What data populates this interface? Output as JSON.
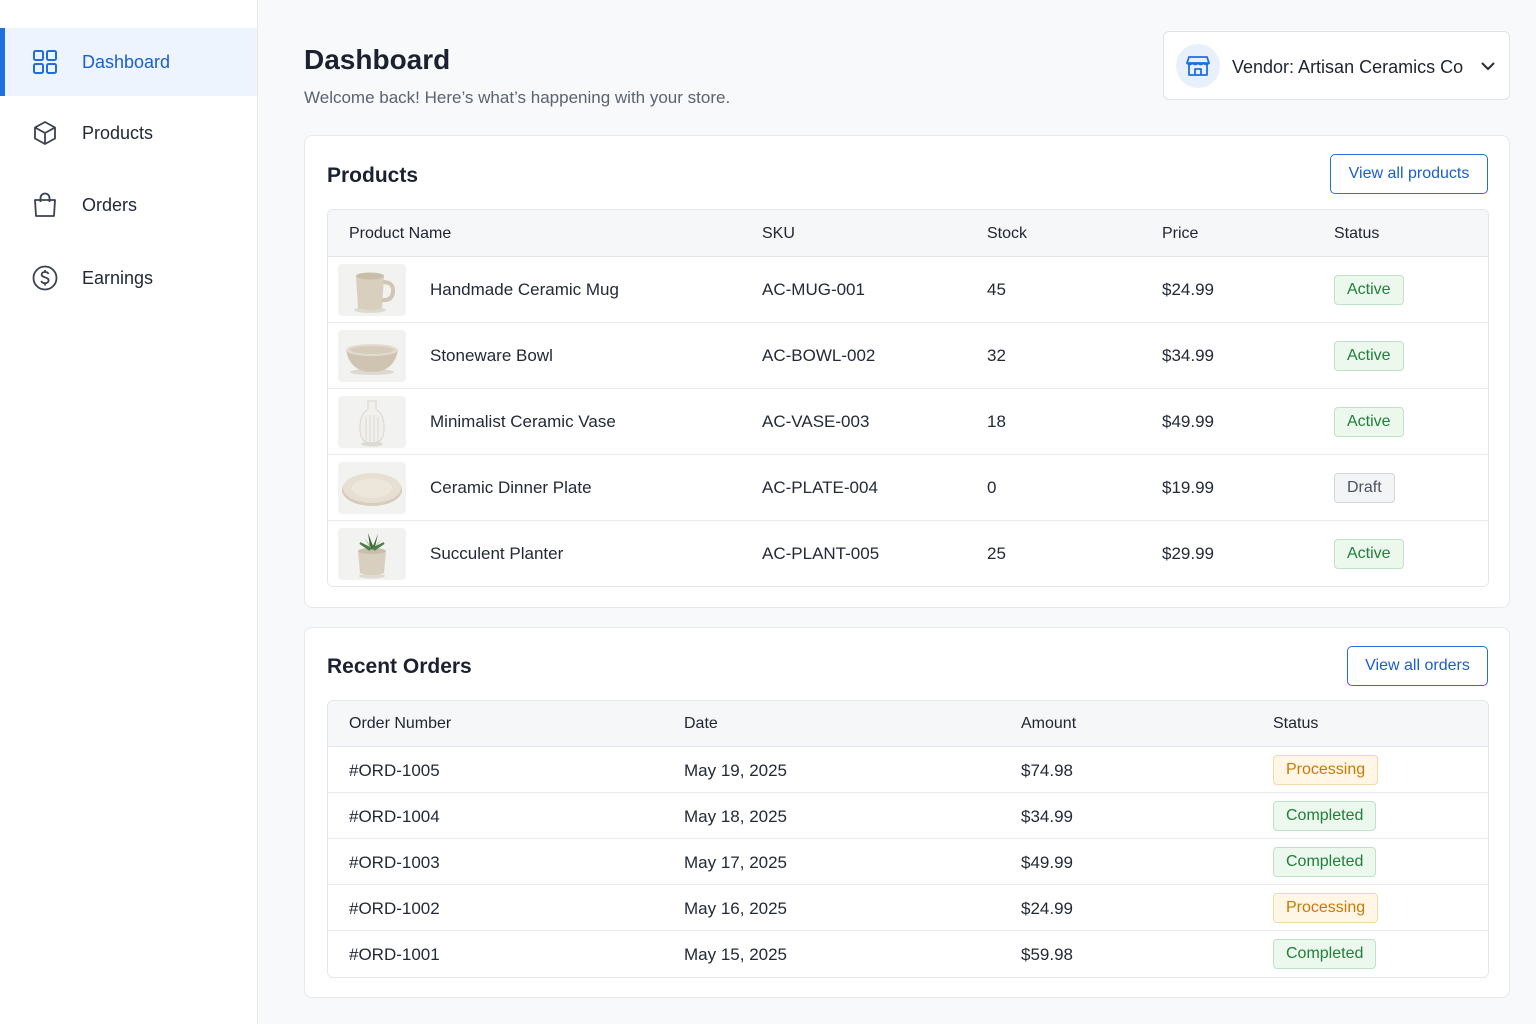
{
  "sidebar": {
    "items": [
      {
        "label": "Dashboard",
        "icon": "grid-icon",
        "active": true
      },
      {
        "label": "Products",
        "icon": "cube-icon",
        "active": false
      },
      {
        "label": "Orders",
        "icon": "shopping-bag-icon",
        "active": false
      },
      {
        "label": "Earnings",
        "icon": "dollar-circle-icon",
        "active": false
      }
    ]
  },
  "header": {
    "title": "Dashboard",
    "subtitle": "Welcome back! Here’s what’s happening with your store.",
    "vendor_label": "Vendor: Artisan Ceramics Co"
  },
  "products": {
    "title": "Products",
    "view_all": "View all products",
    "columns": [
      "Product Name",
      "SKU",
      "Stock",
      "Price",
      "Status"
    ],
    "rows": [
      {
        "name": "Handmade Ceramic Mug",
        "sku": "AC-MUG-001",
        "stock": "45",
        "price": "$24.99",
        "status": "Active",
        "thumb": "mug"
      },
      {
        "name": "Stoneware Bowl",
        "sku": "AC-BOWL-002",
        "stock": "32",
        "price": "$34.99",
        "status": "Active",
        "thumb": "bowl"
      },
      {
        "name": "Minimalist Ceramic Vase",
        "sku": "AC-VASE-003",
        "stock": "18",
        "price": "$49.99",
        "status": "Active",
        "thumb": "vase"
      },
      {
        "name": "Ceramic Dinner Plate",
        "sku": "AC-PLATE-004",
        "stock": "0",
        "price": "$19.99",
        "status": "Draft",
        "thumb": "plate"
      },
      {
        "name": "Succulent Planter",
        "sku": "AC-PLANT-005",
        "stock": "25",
        "price": "$29.99",
        "status": "Active",
        "thumb": "planter"
      }
    ]
  },
  "orders": {
    "title": "Recent Orders",
    "view_all": "View all orders",
    "columns": [
      "Order Number",
      "Date",
      "Amount",
      "Status"
    ],
    "rows": [
      {
        "number": "#ORD-1005",
        "date": "May 19, 2025",
        "amount": "$74.98",
        "status": "Processing"
      },
      {
        "number": "#ORD-1004",
        "date": "May 18, 2025",
        "amount": "$34.99",
        "status": "Completed"
      },
      {
        "number": "#ORD-1003",
        "date": "May 17, 2025",
        "amount": "$49.99",
        "status": "Completed"
      },
      {
        "number": "#ORD-1002",
        "date": "May 16, 2025",
        "amount": "$24.99",
        "status": "Processing"
      },
      {
        "number": "#ORD-1001",
        "date": "May 15, 2025",
        "amount": "$59.98",
        "status": "Completed"
      }
    ]
  },
  "colors": {
    "accent": "#1f6fe0",
    "active_badge": "#20803a",
    "processing_badge": "#c77a06",
    "draft_badge": "#4b5260"
  }
}
